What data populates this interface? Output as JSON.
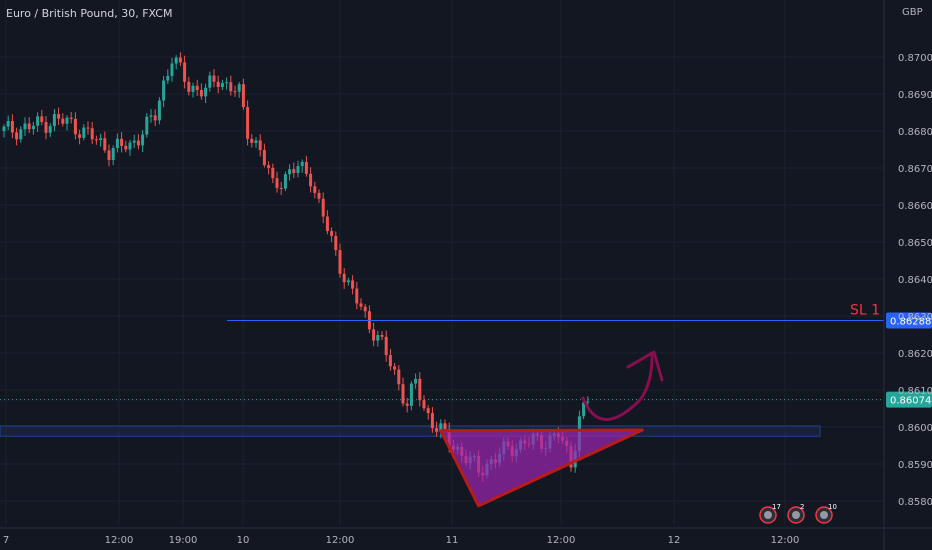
{
  "header": {
    "symbol_title": "Euro / British Pound, 30, FXCM",
    "currency": "GBP"
  },
  "colors": {
    "background": "#131722",
    "grid": "#1e222d",
    "candle_up": "#26a69a",
    "candle_down": "#ef5350",
    "sl_line": "#2962ff",
    "sl_label": "#f23645",
    "current_price": "#26a69a",
    "triangle_fill": "#9c27b0",
    "triangle_stroke": "#b71c1c",
    "arrow": "#880e4f",
    "zone_fill": "#1e2a4a",
    "zone_stroke": "#2962ff"
  },
  "annotations": {
    "sl_label": "SL 1",
    "sl_price": "0.86288",
    "current_price": "0.86074",
    "events": [
      {
        "icon": "flag-uk-icon",
        "count": "17"
      },
      {
        "icon": "calendar-icon",
        "count": "2"
      },
      {
        "icon": "calendar-icon",
        "count": "10"
      }
    ]
  },
  "chart_data": {
    "type": "candlestick",
    "title": "Euro / British Pound, 30, FXCM",
    "ylabel": "GBP",
    "ylim": [
      0.8575,
      0.8712
    ],
    "y_ticks": [
      "0.87000",
      "0.86900",
      "0.86800",
      "0.86700",
      "0.86600",
      "0.86500",
      "0.86400",
      "0.86300",
      "0.86200",
      "0.86100",
      "0.86000",
      "0.85900",
      "0.85800"
    ],
    "x_ticks": [
      "7",
      "12:00",
      "19:00",
      "10",
      "12:00",
      "11",
      "12:00",
      "12",
      "12:00"
    ],
    "grid": true,
    "horizontal_lines": [
      {
        "name": "SL 1",
        "value": 0.86288
      },
      {
        "name": "current",
        "value": 0.86074
      }
    ],
    "support_zone": {
      "from": 0.85975,
      "to": 0.86003
    },
    "close_path": [
      [
        0,
        0.868
      ],
      [
        6,
        0.8681
      ],
      [
        12,
        0.8683
      ],
      [
        16,
        0.8682
      ],
      [
        20,
        0.8679
      ],
      [
        25,
        0.8675
      ],
      [
        30,
        0.8676
      ],
      [
        36,
        0.8684
      ],
      [
        38,
        0.8693
      ],
      [
        40,
        0.87
      ],
      [
        44,
        0.8692
      ],
      [
        48,
        0.8691
      ],
      [
        51,
        0.8694
      ],
      [
        54,
        0.8692
      ],
      [
        56,
        0.869
      ],
      [
        58,
        0.868
      ],
      [
        61,
        0.8675
      ],
      [
        64,
        0.8665
      ],
      [
        67,
        0.8668
      ],
      [
        70,
        0.867
      ],
      [
        73,
        0.8668
      ],
      [
        75,
        0.866
      ],
      [
        78,
        0.865
      ],
      [
        82,
        0.8638
      ],
      [
        86,
        0.863
      ],
      [
        90,
        0.8622
      ],
      [
        94,
        0.8612
      ],
      [
        96,
        0.8606
      ],
      [
        98,
        0.8612
      ],
      [
        100,
        0.8605
      ],
      [
        103,
        0.86
      ],
      [
        106,
        0.8596
      ],
      [
        110,
        0.8592
      ],
      [
        113,
        0.8588
      ],
      [
        116,
        0.8591
      ],
      [
        120,
        0.8594
      ],
      [
        124,
        0.8596
      ],
      [
        128,
        0.8596
      ],
      [
        132,
        0.8598
      ],
      [
        135,
        0.859
      ],
      [
        137,
        0.8603
      ],
      [
        139,
        0.8607
      ]
    ],
    "triangle": [
      {
        "x": 104,
        "y": 0.8599
      },
      {
        "x": 113,
        "y": 0.85787
      },
      {
        "x": 152,
        "y": 0.85992
      }
    ]
  }
}
